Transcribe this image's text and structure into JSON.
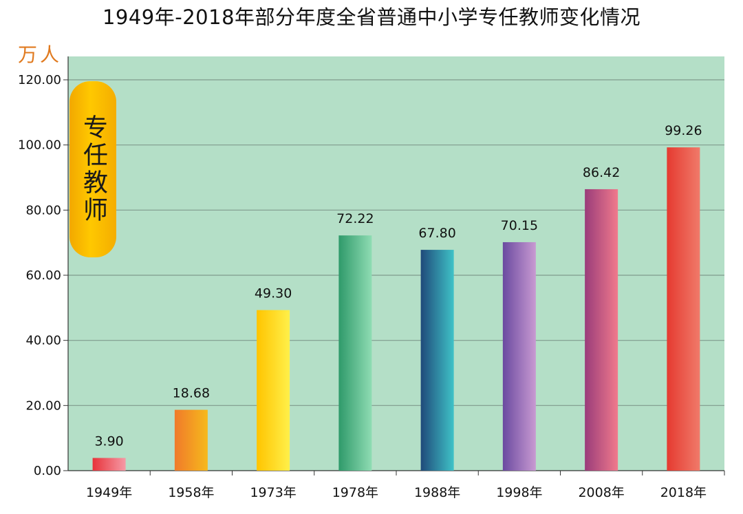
{
  "title": "1949年-2018年部分年度全省普通中小学专任教师变化情况",
  "unit": "万人",
  "badge": "专任教师",
  "colors": {
    "plot_background": "#b4dfc7",
    "gridline": "#7f9a8c",
    "unit_text": "#e07a1f",
    "badge": "#f7b500"
  },
  "chart_data": {
    "type": "bar",
    "title": "1949年-2018年部分年度全省普通中小学专任教师变化情况",
    "ylabel": "万人",
    "xlabel": "",
    "ylim": [
      0,
      120
    ],
    "y_ticks": [
      "0.00",
      "20.00",
      "40.00",
      "60.00",
      "80.00",
      "100.00",
      "120.00"
    ],
    "grid": true,
    "categories": [
      "1949年",
      "1958年",
      "1973年",
      "1978年",
      "1988年",
      "1998年",
      "2008年",
      "2018年"
    ],
    "values": [
      3.9,
      18.68,
      49.3,
      72.22,
      67.8,
      70.15,
      86.42,
      99.26
    ],
    "data_labels": [
      "3.90",
      "18.68",
      "49.30",
      "72.22",
      "67.80",
      "70.15",
      "86.42",
      "99.26"
    ],
    "bar_colors": [
      [
        "#e8333a",
        "#f59aa6"
      ],
      [
        "#f07a2a",
        "#f6b91c"
      ],
      [
        "#ffc400",
        "#fff04a"
      ],
      [
        "#2f9a6a",
        "#8fdcb3"
      ],
      [
        "#1f4a7a",
        "#3fc2c7"
      ],
      [
        "#6a4aa0",
        "#c99ad2"
      ],
      [
        "#9a3c7a",
        "#f07a8c"
      ],
      [
        "#e53a30",
        "#f07a6a"
      ]
    ]
  }
}
